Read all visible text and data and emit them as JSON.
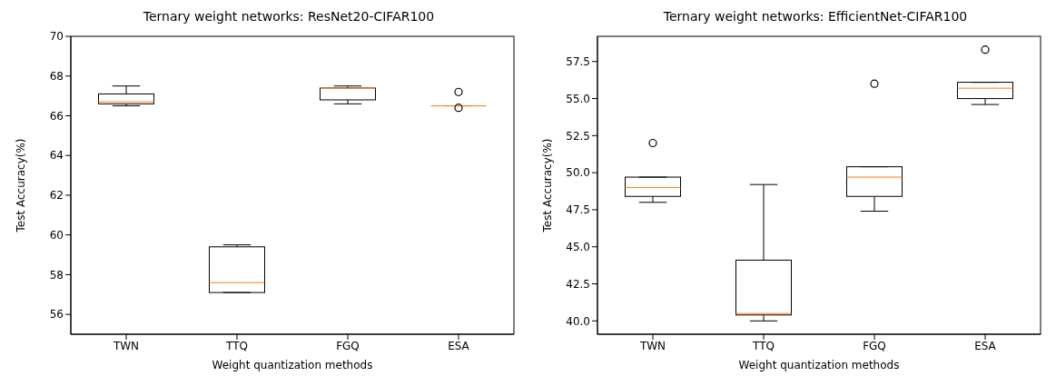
{
  "chart_data": [
    {
      "type": "box",
      "title": "Ternary weight networks: ResNet20-CIFAR100",
      "xlabel": "Weight quantization methods",
      "ylabel": "Test Accuracy(%)",
      "categories": [
        "TWN",
        "TTQ",
        "FGQ",
        "ESA"
      ],
      "boxes": [
        {
          "low": 66.5,
          "q1": 66.6,
          "median": 66.7,
          "q3": 67.1,
          "high": 67.5
        },
        {
          "low": 57.1,
          "q1": 57.1,
          "median": 57.6,
          "q3": 59.4,
          "high": 59.5
        },
        {
          "low": 66.6,
          "q1": 66.8,
          "median": 67.4,
          "q3": 67.4,
          "high": 67.5
        },
        {
          "low": 66.5,
          "q1": 66.5,
          "median": 66.5,
          "q3": 66.5,
          "high": 66.5,
          "outliers": [
            67.2,
            66.4
          ]
        }
      ],
      "ylim": [
        55,
        70
      ],
      "yticks": [
        56,
        58,
        60,
        62,
        64,
        66,
        68,
        70
      ]
    },
    {
      "type": "box",
      "title": "Ternary weight networks: EfficientNet-CIFAR100",
      "xlabel": "Weight quantization methods",
      "ylabel": "Test Accuracy(%)",
      "categories": [
        "TWN",
        "TTQ",
        "FGQ",
        "ESA"
      ],
      "boxes": [
        {
          "low": 48.0,
          "q1": 48.4,
          "median": 49.0,
          "q3": 49.7,
          "high": 49.7,
          "outliers": [
            52.0
          ]
        },
        {
          "low": 40.0,
          "q1": 40.4,
          "median": 40.5,
          "q3": 44.1,
          "high": 49.2
        },
        {
          "low": 47.4,
          "q1": 48.4,
          "median": 49.7,
          "q3": 50.4,
          "high": 50.4,
          "outliers": [
            56.0
          ]
        },
        {
          "low": 54.6,
          "q1": 55.0,
          "median": 55.7,
          "q3": 56.1,
          "high": 56.1,
          "outliers": [
            58.3
          ]
        }
      ],
      "ylim": [
        39.1,
        59.2
      ],
      "yticks": [
        {
          "value": 40,
          "label": "40.0"
        },
        {
          "value": 42.5,
          "label": "42.5"
        },
        {
          "value": 45,
          "label": "45.0"
        },
        {
          "value": 47.5,
          "label": "47.5"
        },
        {
          "value": 50,
          "label": "50.0"
        },
        {
          "value": 52.5,
          "label": "52.5"
        },
        {
          "value": 55,
          "label": "55.0"
        },
        {
          "value": 57.5,
          "label": "57.5"
        }
      ]
    }
  ]
}
